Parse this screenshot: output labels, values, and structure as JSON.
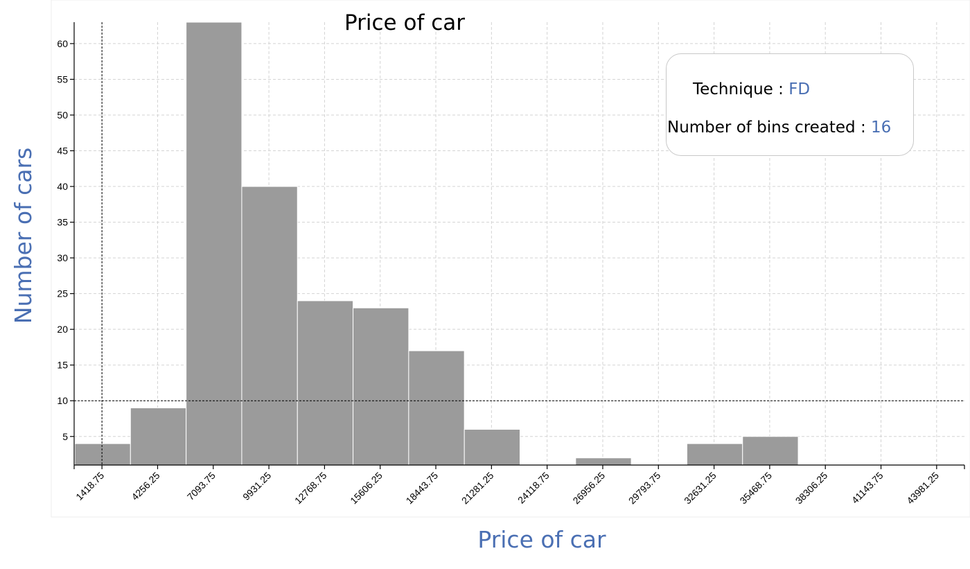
{
  "chart_data": {
    "type": "bar",
    "title": "Price of car",
    "xlabel": "Price of car",
    "ylabel": "Number of cars",
    "x_tick_labels": [
      "1418.75",
      "4256.25",
      "7093.75",
      "9931.25",
      "12768.75",
      "15606.25",
      "18443.75",
      "21281.25",
      "24118.75",
      "26956.25",
      "29793.75",
      "32631.25",
      "35468.75",
      "38306.25",
      "41143.75",
      "43981.25"
    ],
    "y_ticks": [
      5,
      10,
      15,
      20,
      25,
      30,
      35,
      40,
      45,
      50,
      55,
      60
    ],
    "values": [
      4,
      9,
      63,
      40,
      24,
      23,
      17,
      6,
      1,
      2,
      0,
      4,
      5,
      0,
      1,
      0
    ],
    "ylim": [
      1,
      63
    ],
    "reference_lines": {
      "x": "1418.75",
      "y": 10
    },
    "grid": true,
    "colors": {
      "bar": "#9b9b9b",
      "label_accent": "#4a6fb3"
    }
  },
  "legend": {
    "technique_label": "Technique :",
    "technique_value": "FD",
    "bins_label": "Number of bins created :",
    "bins_value": "16"
  }
}
